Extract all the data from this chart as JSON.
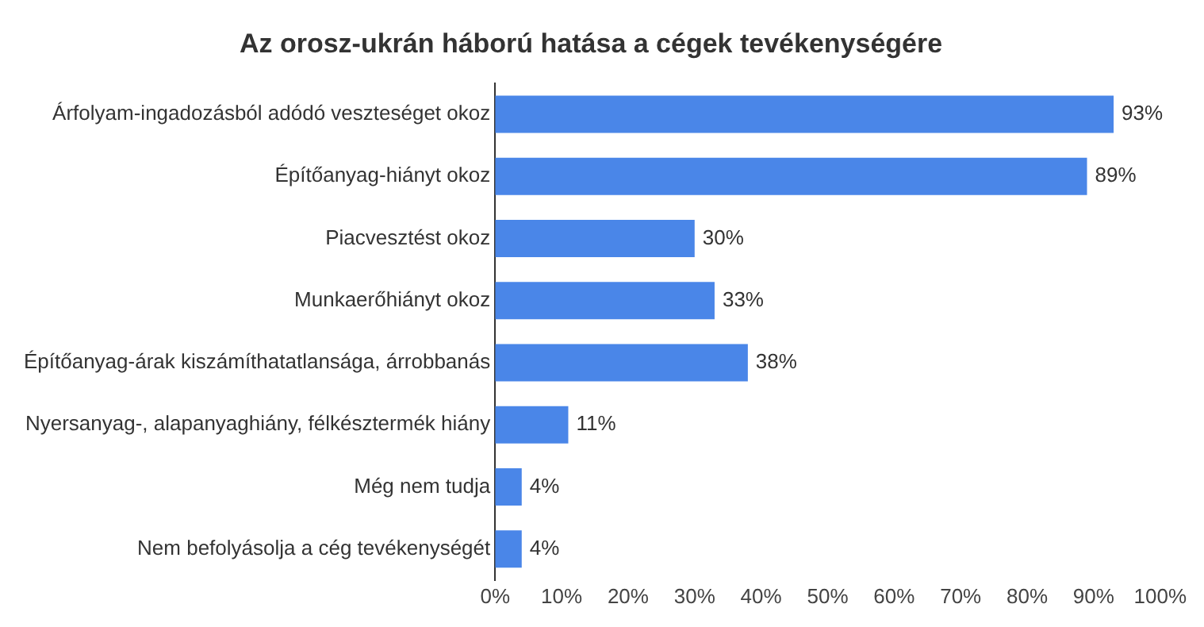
{
  "chart_data": {
    "type": "bar",
    "orientation": "horizontal",
    "title": "Az orosz-ukrán háború hatása a cégek tevékenységére",
    "categories": [
      "Árfolyam-ingadozásból adódó veszteséget okoz",
      "Építőanyag-hiányt okoz",
      "Piacvesztést okoz",
      "Munkaerőhiányt okoz",
      "Építőanyag-árak kiszámíthatatlansága, árrobbanás",
      "Nyersanyag-, alapanyaghiány, félkésztermék hiány",
      "Még nem tudja",
      "Nem befolyásolja a cég tevékenységét"
    ],
    "values": [
      93,
      89,
      30,
      33,
      38,
      11,
      4,
      4
    ],
    "value_labels": [
      "93%",
      "89%",
      "30%",
      "33%",
      "38%",
      "11%",
      "4%",
      "4%"
    ],
    "color": "#4a86e8",
    "xlim": [
      0,
      100
    ],
    "xticks": [
      {
        "value": 0,
        "label": "0%"
      },
      {
        "value": 10,
        "label": "10%"
      },
      {
        "value": 20,
        "label": "20%"
      },
      {
        "value": 30,
        "label": "30%"
      },
      {
        "value": 40,
        "label": "40%"
      },
      {
        "value": 50,
        "label": "50%"
      },
      {
        "value": 60,
        "label": "60%"
      },
      {
        "value": 70,
        "label": "70%"
      },
      {
        "value": 80,
        "label": "80%"
      },
      {
        "value": 90,
        "label": "90%"
      },
      {
        "value": 100,
        "label": "100%"
      }
    ],
    "grid": false,
    "legend": false
  }
}
